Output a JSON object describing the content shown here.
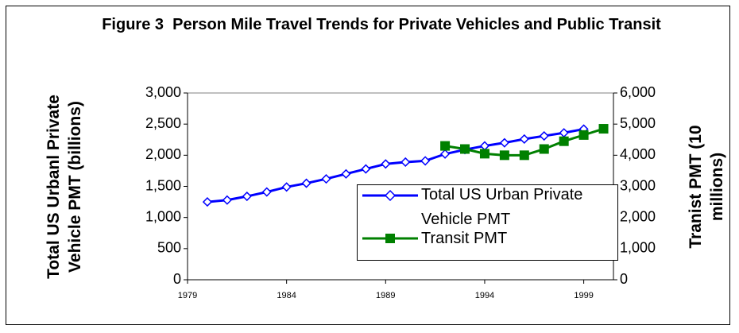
{
  "chart_data": {
    "type": "line",
    "title": "Figure 3  Person Mile Travel Trends for Private Vehicles and Public Transit",
    "y_label": "Total US Urbanl Private Vehicle PMT (billions)",
    "y2_label": "Tranist PMT (10 millions)",
    "xlim": [
      1979,
      2000.5
    ],
    "xticks": [
      1979,
      1984,
      1989,
      1994,
      1999
    ],
    "ylim": [
      0,
      3000
    ],
    "yticks": [
      0,
      500,
      {
        "value": 1000,
        "label": "1,000"
      },
      {
        "value": 1500,
        "label": "1,500"
      },
      {
        "value": 2000,
        "label": "2,000"
      },
      {
        "value": 2500,
        "label": "2,500"
      },
      {
        "value": 3000,
        "label": "3,000"
      }
    ],
    "y2lim": [
      0,
      6000
    ],
    "y2ticks": [
      0,
      {
        "value": 1000,
        "label": "1,000"
      },
      {
        "value": 2000,
        "label": "2,000"
      },
      {
        "value": 3000,
        "label": "3,000"
      },
      {
        "value": 4000,
        "label": "4,000"
      },
      {
        "value": 5000,
        "label": "5,000"
      },
      {
        "value": 6000,
        "label": "6,000"
      }
    ],
    "legend": "lower right",
    "series": [
      {
        "name": "Total US Urban Private Vehicle PMT",
        "color": "#0000ff",
        "marker": "diamond",
        "x": [
          1980,
          1981,
          1982,
          1983,
          1984,
          1985,
          1986,
          1987,
          1988,
          1989,
          1990,
          1991,
          1992,
          1993,
          1994,
          1995,
          1996,
          1997,
          1998,
          1999
        ],
        "values": [
          1250,
          1280,
          1340,
          1410,
          1490,
          1550,
          1620,
          1700,
          1780,
          1860,
          1890,
          1910,
          2020,
          2090,
          2150,
          2200,
          2260,
          2310,
          2360,
          2420
        ]
      },
      {
        "name": "Transit PMT",
        "color": "#008000",
        "marker": "square",
        "axis": "y2",
        "x": [
          1992,
          1993,
          1994,
          1995,
          1996,
          1997,
          1998,
          1999,
          2000
        ],
        "values": [
          4300,
          4200,
          4050,
          4000,
          4000,
          4200,
          4450,
          4650,
          4850
        ]
      }
    ]
  }
}
